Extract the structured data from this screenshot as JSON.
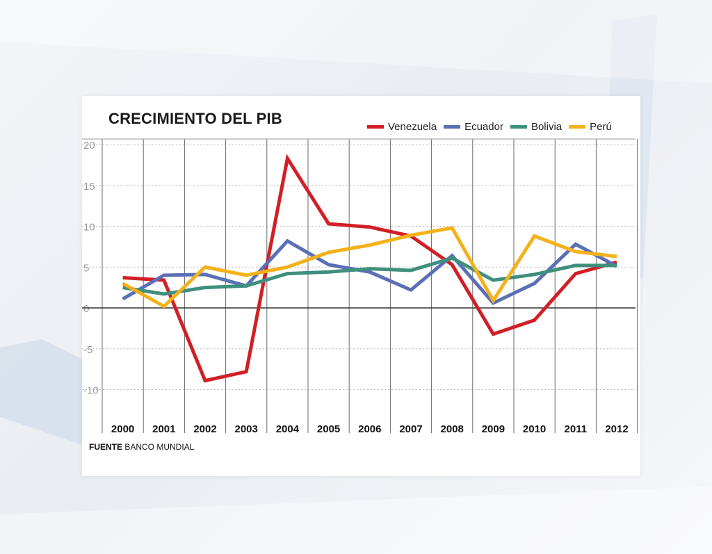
{
  "colors": {
    "Venezuela": "#d21f26",
    "Ecuador": "#5a6fb6",
    "Bolivia": "#3f8f7d",
    "Perú": "#f4b11a"
  },
  "chart_data": {
    "type": "line",
    "title": "CRECIMIENTO DEL PIB",
    "x": [
      "2000",
      "2001",
      "2002",
      "2003",
      "2004",
      "2005",
      "2006",
      "2007",
      "2008",
      "2009",
      "2010",
      "2011",
      "2012"
    ],
    "ylim": [
      -12,
      20
    ],
    "yticks": [
      "20",
      "15",
      "10",
      "5",
      "0",
      "-5",
      "-10"
    ],
    "grid": true,
    "legend_position": "top-right",
    "series": [
      {
        "name": "Venezuela",
        "values": [
          3.7,
          3.4,
          -8.9,
          -7.8,
          18.3,
          10.3,
          9.9,
          8.8,
          5.3,
          -3.2,
          -1.5,
          4.2,
          5.6
        ]
      },
      {
        "name": "Ecuador",
        "values": [
          1.1,
          4.0,
          4.1,
          2.7,
          8.2,
          5.3,
          4.4,
          2.2,
          6.4,
          0.6,
          3.0,
          7.8,
          5.1
        ]
      },
      {
        "name": "Bolivia",
        "values": [
          2.5,
          1.7,
          2.5,
          2.7,
          4.2,
          4.4,
          4.8,
          4.6,
          6.1,
          3.4,
          4.1,
          5.2,
          5.2
        ]
      },
      {
        "name": "Perú",
        "values": [
          3.0,
          0.2,
          5.0,
          4.0,
          5.0,
          6.8,
          7.7,
          8.9,
          9.8,
          0.9,
          8.8,
          6.9,
          6.3
        ]
      }
    ],
    "source_label": "FUENTE",
    "source_text": "BANCO MUNDIAL"
  }
}
